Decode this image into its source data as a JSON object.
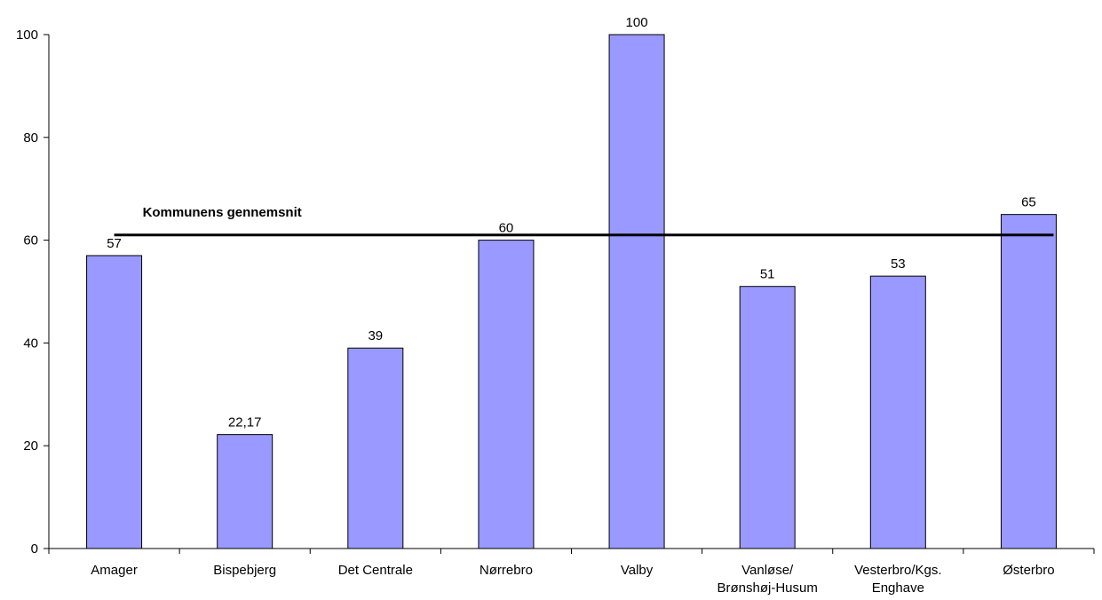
{
  "chart_data": {
    "type": "bar",
    "categories": [
      [
        "Amager"
      ],
      [
        "Bispebjerg"
      ],
      [
        "Det Centrale"
      ],
      [
        "Nørrebro"
      ],
      [
        "Valby"
      ],
      [
        "Vanløse/",
        "Brønshøj-Husum"
      ],
      [
        "Vesterbro/Kgs.",
        "Enghave"
      ],
      [
        "Østerbro"
      ]
    ],
    "values": [
      57,
      22.17,
      39,
      60,
      100,
      51,
      53,
      65
    ],
    "data_labels": [
      "57",
      "22,17",
      "39",
      "60",
      "100",
      "51",
      "53",
      "65"
    ],
    "ylim": [
      0,
      100
    ],
    "yticks": [
      0,
      20,
      40,
      60,
      80,
      100
    ],
    "bar_color": "#9999ff",
    "bar_edge": "#000000",
    "reference_line": {
      "label": "Kommunens gennemsnit",
      "value": 61,
      "color": "#000000"
    },
    "grid": false,
    "legend": "none"
  }
}
